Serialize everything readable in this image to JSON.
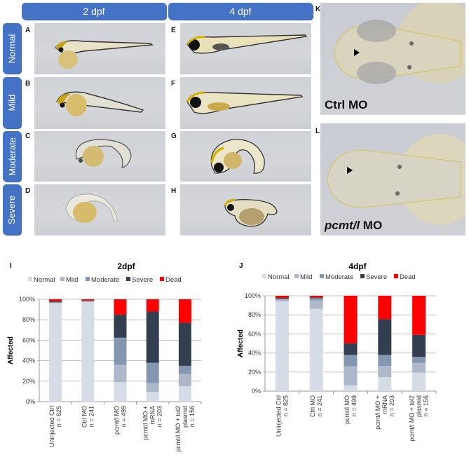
{
  "figure": {
    "column_headers": [
      "2 dpf",
      "4 dpf"
    ],
    "row_labels": [
      "Normal",
      "Mild",
      "Moderate",
      "Severe"
    ],
    "panel_letters_2dpf": [
      "A",
      "B",
      "C",
      "D"
    ],
    "panel_letters_4dpf": [
      "E",
      "F",
      "G",
      "H"
    ],
    "dorsal_panels": [
      {
        "letter": "K",
        "label": "Ctrl MO",
        "italic_part": "",
        "plain_part": "Ctrl MO"
      },
      {
        "letter": "L",
        "label": "pcmt/l MO",
        "italic_part": "pcmt/l",
        "plain_part": " MO"
      }
    ],
    "header_color": "#4472c4",
    "arrowhead_icon": "arrowhead-marker"
  },
  "chart_data": [
    {
      "panel_letter": "I",
      "type": "bar",
      "stacked": true,
      "title": "2dpf",
      "xlabel": "",
      "ylabel": "Affected",
      "ylim": [
        0,
        100
      ],
      "yticks": [
        "0%",
        "20%",
        "40%",
        "60%",
        "80%",
        "100%"
      ],
      "grid": true,
      "legend_position": "top",
      "categories": [
        [
          "Uninjected Ctrl",
          "n = 825"
        ],
        [
          "Ctrl MO",
          "n = 241"
        ],
        [
          "pcmt/l MO",
          "n = 499"
        ],
        [
          "pcmt/l MO +",
          "mRNA",
          "n = 203"
        ],
        [
          "pcmt/l MO + tol2",
          "plasmid",
          "n = 156"
        ]
      ],
      "series": [
        {
          "name": "Normal",
          "color": "#d6dce5",
          "values": [
            96.0,
            97.5,
            19.0,
            9.5,
            15.0
          ]
        },
        {
          "name": "Mild",
          "color": "#adb9ca",
          "values": [
            0.5,
            0.5,
            17.0,
            8.5,
            12.0
          ]
        },
        {
          "name": "Moderate",
          "color": "#8497b0",
          "values": [
            0.8,
            0.3,
            26.5,
            20.0,
            8.0
          ]
        },
        {
          "name": "Severe",
          "color": "#333f50",
          "values": [
            0.7,
            0.5,
            22.5,
            50.0,
            42.0
          ]
        },
        {
          "name": "Dead",
          "color": "#ff0000",
          "values": [
            2.0,
            1.2,
            15.0,
            12.0,
            23.0
          ]
        }
      ]
    },
    {
      "panel_letter": "J",
      "type": "bar",
      "stacked": true,
      "title": "4dpf",
      "xlabel": "",
      "ylabel": "Affected",
      "ylim": [
        0,
        100
      ],
      "yticks": [
        "0%",
        "20%",
        "40%",
        "60%",
        "80%",
        "100%"
      ],
      "grid": true,
      "legend_position": "top",
      "categories": [
        [
          "Uninjected Ctrl",
          "n = 825"
        ],
        [
          "Ctrl MO",
          "n = 241"
        ],
        [
          "pcmt/l MO",
          "n = 499"
        ],
        [
          "pcmt/l MO +",
          "mRNA",
          "n = 203"
        ],
        [
          "pcmt/l MO + tol2",
          "plasmid",
          "n = 156"
        ]
      ],
      "series": [
        {
          "name": "Normal",
          "color": "#d6dce5",
          "values": [
            94.0,
            86.3,
            6.0,
            14.6,
            19.3
          ]
        },
        {
          "name": "Mild",
          "color": "#adb9ca",
          "values": [
            2.0,
            8.7,
            20.0,
            11.7,
            10.2
          ]
        },
        {
          "name": "Moderate",
          "color": "#8497b0",
          "values": [
            1.0,
            2.5,
            12.0,
            11.7,
            6.4
          ]
        },
        {
          "name": "Severe",
          "color": "#333f50",
          "values": [
            0.8,
            0.8,
            12.2,
            37.4,
            23.1
          ]
        },
        {
          "name": "Dead",
          "color": "#ff0000",
          "values": [
            2.2,
            1.7,
            49.8,
            24.6,
            41.0
          ]
        }
      ]
    }
  ]
}
